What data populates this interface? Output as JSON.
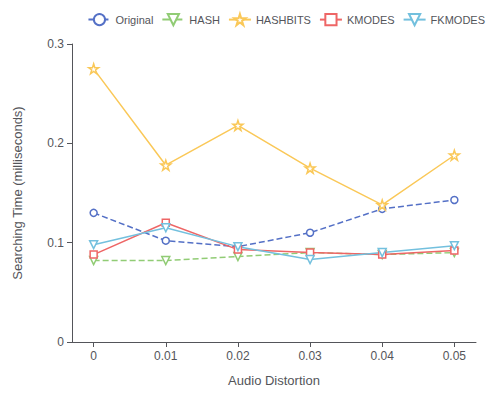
{
  "chart_data": {
    "type": "line",
    "xlabel": "Audio Distortion",
    "ylabel": "Searching Time (milliseconds)",
    "x": [
      0,
      0.01,
      0.02,
      0.03,
      0.04,
      0.05
    ],
    "series": [
      {
        "name": "Original",
        "values": [
          0.13,
          0.102,
          0.096,
          0.11,
          0.134,
          0.143
        ],
        "marker": "circle",
        "line_style": "dashed"
      },
      {
        "name": "HASH",
        "values": [
          0.082,
          0.082,
          0.086,
          0.09,
          0.088,
          0.09
        ],
        "marker": "triangle_down",
        "line_style": "dashed"
      },
      {
        "name": "HASHBITS",
        "values": [
          0.275,
          0.178,
          0.218,
          0.175,
          0.138,
          0.188
        ],
        "marker": "star",
        "line_style": "solid"
      },
      {
        "name": "KMODES",
        "values": [
          0.088,
          0.12,
          0.093,
          0.09,
          0.088,
          0.092
        ],
        "marker": "square",
        "line_style": "solid"
      },
      {
        "name": "FKMODES",
        "values": [
          0.098,
          0.115,
          0.096,
          0.083,
          0.09,
          0.097
        ],
        "marker": "triangle_down",
        "line_style": "solid"
      }
    ],
    "xlim": [
      -0.003,
      0.053
    ],
    "ylim": [
      0,
      0.3
    ],
    "xticks": [
      0,
      0.01,
      0.02,
      0.03,
      0.04,
      0.05
    ],
    "yticks": [
      0,
      0.1,
      0.2,
      0.3
    ],
    "grid": false,
    "legend": "upper right"
  }
}
